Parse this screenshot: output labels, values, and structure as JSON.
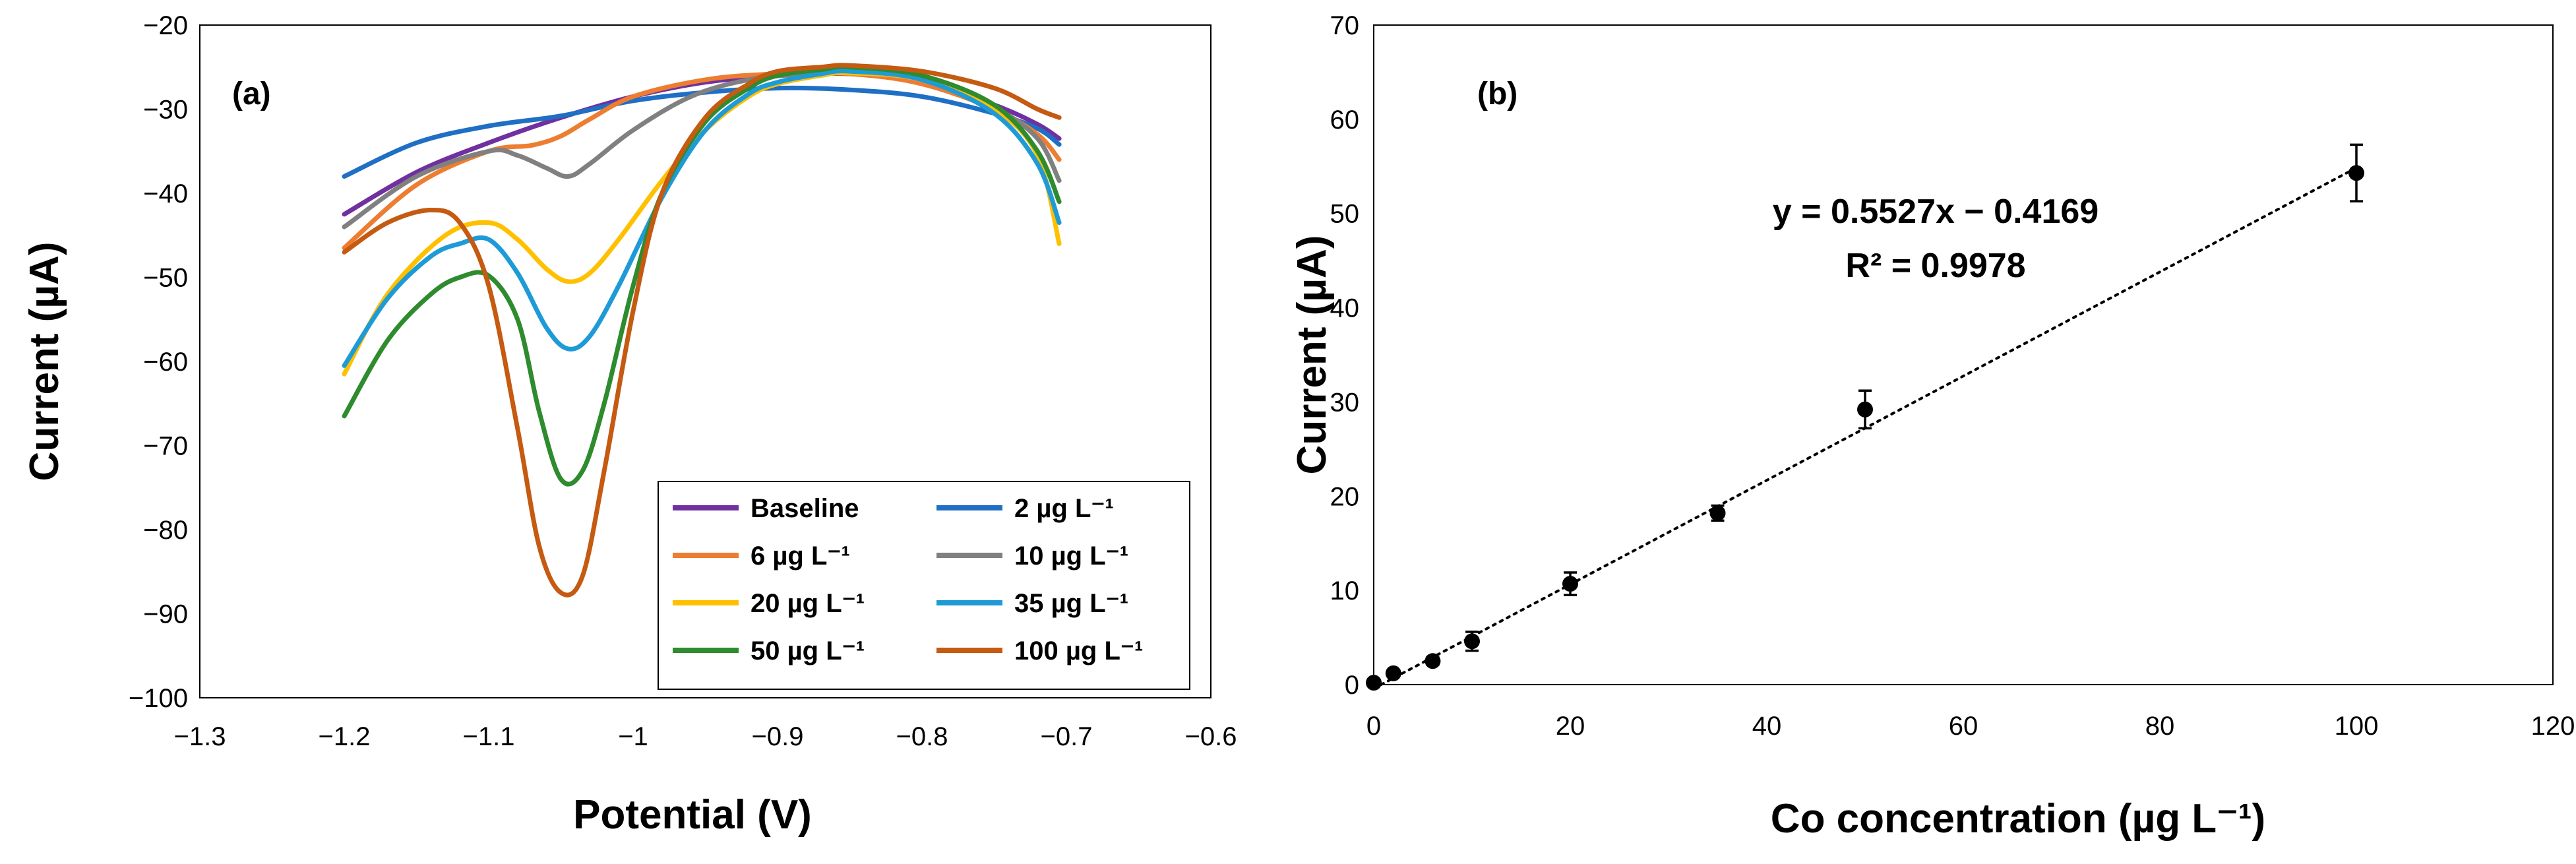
{
  "chart_data": [
    {
      "panel": "(a)",
      "type": "line",
      "title": "",
      "xlabel": "Potential (V)",
      "ylabel": "Current (µA)",
      "xlim": [
        -1.3,
        -0.6
      ],
      "ylim": [
        -100,
        -20
      ],
      "xticks": [
        -1.3,
        -1.2,
        -1.1,
        -1,
        -0.9,
        -0.8,
        -0.7,
        -0.6
      ],
      "xtick_labels": [
        "−1.3",
        "−1.2",
        "−1.1",
        "−1",
        "−0.9",
        "−0.8",
        "−0.7",
        "−0.6"
      ],
      "yticks": [
        -20,
        -30,
        -40,
        -50,
        -60,
        -70,
        -80,
        -90,
        -100
      ],
      "ytick_labels": [
        "−20",
        "−30",
        "−40",
        "−50",
        "−60",
        "−70",
        "−80",
        "−90",
        "−100"
      ],
      "grid": false,
      "legend_position": "bottom-right",
      "series": [
        {
          "name": "Baseline",
          "color": "#7030A0",
          "x": [
            -1.2,
            -1.15,
            -1.1,
            -1.05,
            -1.0,
            -0.95,
            -0.9,
            -0.85,
            -0.8,
            -0.75,
            -0.72,
            -0.705
          ],
          "y": [
            -42.5,
            -37.5,
            -34,
            -31,
            -28.5,
            -26.8,
            -26.0,
            -25.8,
            -26.8,
            -29.5,
            -31.8,
            -33.5
          ]
        },
        {
          "name": "2 µg L⁻¹",
          "color": "#1F6FC5",
          "x": [
            -1.2,
            -1.15,
            -1.1,
            -1.05,
            -1.0,
            -0.95,
            -0.9,
            -0.85,
            -0.8,
            -0.75,
            -0.72,
            -0.705
          ],
          "y": [
            -38,
            -34,
            -32,
            -30.8,
            -29.0,
            -28.0,
            -27.5,
            -27.7,
            -28.5,
            -30.5,
            -32.3,
            -34.2
          ]
        },
        {
          "name": "6 µg L⁻¹",
          "color": "#ED7D31",
          "x": [
            -1.2,
            -1.15,
            -1.1,
            -1.07,
            -1.05,
            -1.03,
            -1.0,
            -0.95,
            -0.9,
            -0.85,
            -0.8,
            -0.75,
            -0.72,
            -0.705
          ],
          "y": [
            -46.5,
            -39,
            -35,
            -34.3,
            -33.2,
            -31.2,
            -28.5,
            -26.5,
            -25.8,
            -25.8,
            -27.0,
            -30.0,
            -33.0,
            -36.0
          ]
        },
        {
          "name": "10 µg L⁻¹",
          "color": "#808080",
          "x": [
            -1.2,
            -1.15,
            -1.1,
            -1.08,
            -1.06,
            -1.045,
            -1.03,
            -1.0,
            -0.96,
            -0.92,
            -0.88,
            -0.85,
            -0.8,
            -0.75,
            -0.72,
            -0.705
          ],
          "y": [
            -44,
            -38,
            -35,
            -35.5,
            -37,
            -38,
            -36.5,
            -32.5,
            -28.5,
            -26.5,
            -25.8,
            -25.5,
            -26.5,
            -29.8,
            -33.5,
            -38.5
          ]
        },
        {
          "name": "20 µg L⁻¹",
          "color": "#FFC000",
          "x": [
            -1.2,
            -1.17,
            -1.13,
            -1.1,
            -1.08,
            -1.06,
            -1.045,
            -1.03,
            -1.01,
            -0.98,
            -0.95,
            -0.92,
            -0.9,
            -0.87,
            -0.85,
            -0.8,
            -0.75,
            -0.72,
            -0.705
          ],
          "y": [
            -61.5,
            -52,
            -45,
            -43.5,
            -45.5,
            -49,
            -50.5,
            -49.5,
            -45.5,
            -38.5,
            -32.5,
            -28.5,
            -27,
            -26,
            -25.7,
            -26.5,
            -30,
            -35.5,
            -46
          ]
        },
        {
          "name": "35 µg L⁻¹",
          "color": "#1E9BD7",
          "x": [
            -1.2,
            -1.17,
            -1.14,
            -1.12,
            -1.1,
            -1.08,
            -1.06,
            -1.045,
            -1.03,
            -1.01,
            -0.98,
            -0.95,
            -0.92,
            -0.9,
            -0.87,
            -0.85,
            -0.8,
            -0.75,
            -0.72,
            -0.705
          ],
          "y": [
            -60.5,
            -52.5,
            -47.5,
            -46,
            -45.5,
            -49.5,
            -56,
            -58.5,
            -57,
            -51,
            -40.5,
            -32.5,
            -28.2,
            -26.8,
            -25.8,
            -25.5,
            -26.5,
            -30.5,
            -36.5,
            -43.5
          ]
        },
        {
          "name": "50 µg L⁻¹",
          "color": "#2E8B2E",
          "x": [
            -1.2,
            -1.17,
            -1.14,
            -1.12,
            -1.1,
            -1.08,
            -1.065,
            -1.05,
            -1.035,
            -1.02,
            -1.0,
            -0.98,
            -0.95,
            -0.92,
            -0.9,
            -0.87,
            -0.85,
            -0.8,
            -0.75,
            -0.72,
            -0.705
          ],
          "y": [
            -66.5,
            -57.5,
            -52,
            -50,
            -49.8,
            -55,
            -66,
            -74,
            -73,
            -65,
            -51,
            -40,
            -31.5,
            -27.5,
            -26,
            -25.3,
            -25,
            -26,
            -29.5,
            -35,
            -41
          ]
        },
        {
          "name": "100 µg L⁻¹",
          "color": "#C55A11",
          "x": [
            -1.2,
            -1.17,
            -1.14,
            -1.12,
            -1.1,
            -1.08,
            -1.065,
            -1.05,
            -1.035,
            -1.02,
            -1.0,
            -0.98,
            -0.95,
            -0.92,
            -0.9,
            -0.87,
            -0.85,
            -0.8,
            -0.75,
            -0.72,
            -0.705
          ],
          "y": [
            -47,
            -43.5,
            -42,
            -43.5,
            -51,
            -68,
            -82,
            -87.5,
            -85.5,
            -73,
            -54,
            -40,
            -31,
            -27,
            -25.5,
            -25,
            -24.8,
            -25.5,
            -27.5,
            -30,
            -31
          ]
        }
      ]
    },
    {
      "panel": "(b)",
      "type": "scatter",
      "title": "",
      "xlabel": "Co concentration (µg L⁻¹)",
      "ylabel": "Current (µA)",
      "xlim": [
        0,
        120
      ],
      "ylim": [
        0,
        70
      ],
      "xticks": [
        0,
        20,
        40,
        60,
        80,
        100,
        120
      ],
      "yticks": [
        0,
        10,
        20,
        30,
        40,
        50,
        60,
        70
      ],
      "grid": false,
      "points": {
        "x": [
          0,
          2,
          6,
          10,
          20,
          35,
          50,
          100
        ],
        "y": [
          0.2,
          1.2,
          2.5,
          4.6,
          10.7,
          18.2,
          29.2,
          54.3
        ],
        "error": [
          0,
          0.3,
          0.4,
          1.0,
          1.2,
          0.8,
          2.0,
          3.0
        ]
      },
      "trendline": {
        "slope": 0.5527,
        "intercept": -0.4169,
        "x_range": [
          0,
          100
        ],
        "style": "dotted"
      },
      "annotations": [
        "y = 0.5527x − 0.4169",
        "R² = 0.9978"
      ]
    }
  ]
}
